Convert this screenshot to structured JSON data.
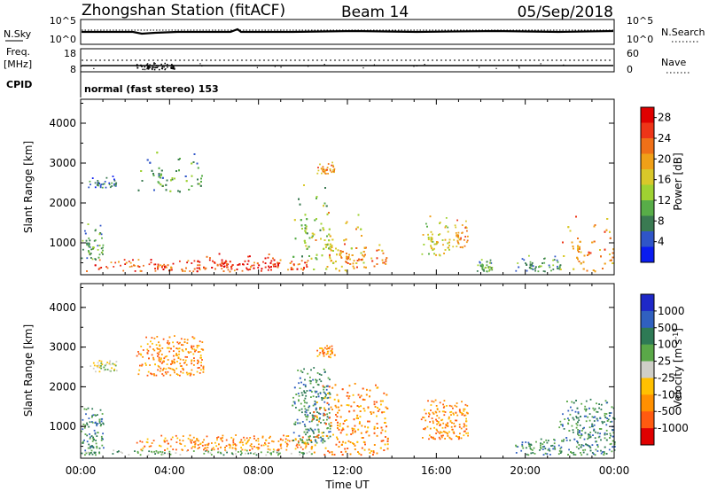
{
  "header": {
    "title": "Zhongshan Station (fitACF)",
    "beam": "Beam 14",
    "date": "05/Sep/2018"
  },
  "nsky_panel": {
    "left_label": "N.Sky",
    "left_ticks": [
      "10^5",
      "10^0"
    ],
    "right_label": "N.Search",
    "right_ticks": [
      "10^5",
      "10^0"
    ]
  },
  "freq_panel": {
    "left_label_1": "Freq.",
    "left_label_2": "[MHz]",
    "left_ticks": [
      "18",
      "8"
    ],
    "right_label": "Nave",
    "right_ticks": [
      "60",
      "0"
    ]
  },
  "cpid": {
    "label": "CPID",
    "mode_text": "normal (fast stereo) 153"
  },
  "time_axis": {
    "label": "Time UT",
    "ticks": [
      "00:00",
      "04:00",
      "08:00",
      "12:00",
      "16:00",
      "20:00",
      "00:00"
    ]
  },
  "chart_data": [
    {
      "type": "heatmap",
      "panel": "power",
      "xlabel": "Time UT",
      "ylabel": "Slant Range [km]",
      "x_ticks": [
        "00:00",
        "04:00",
        "08:00",
        "12:00",
        "16:00",
        "20:00",
        "00:00"
      ],
      "xlim_hours": [
        0,
        24
      ],
      "ylim": [
        200,
        4600
      ],
      "y_ticks": [
        "1000",
        "2000",
        "3000",
        "4000"
      ],
      "colorbar": {
        "label": "Power [dB]",
        "ticks": [
          "4",
          "8",
          "12",
          "16",
          "20",
          "24",
          "28"
        ],
        "range": [
          0,
          30
        ],
        "colors": [
          "#0a1cf0",
          "#2f55c8",
          "#3a7a52",
          "#58ad48",
          "#9fd232",
          "#d9c82a",
          "#f0a018",
          "#f07018",
          "#ee3518",
          "#e00000"
        ]
      },
      "scatter_regions": [
        {
          "t0": 0.0,
          "t1": 10.4,
          "r0": 300,
          "r1": 600,
          "level": 24
        },
        {
          "t0": 0.0,
          "t1": 1.0,
          "r0": 600,
          "r1": 1500,
          "level": 9
        },
        {
          "t0": 0.3,
          "t1": 1.6,
          "r0": 2400,
          "r1": 2700,
          "level": 6
        },
        {
          "t0": 2.5,
          "t1": 5.5,
          "r0": 2300,
          "r1": 3300,
          "level": 9
        },
        {
          "t0": 5.0,
          "t1": 9.0,
          "r0": 350,
          "r1": 750,
          "level": 26
        },
        {
          "t0": 9.5,
          "t1": 11.2,
          "r0": 600,
          "r1": 2500,
          "level": 12
        },
        {
          "t0": 10.4,
          "t1": 12.8,
          "r0": 300,
          "r1": 1800,
          "level": 17
        },
        {
          "t0": 11.0,
          "t1": 13.8,
          "r0": 400,
          "r1": 1000,
          "level": 21
        },
        {
          "t0": 10.6,
          "t1": 11.4,
          "r0": 2750,
          "r1": 3050,
          "level": 20
        },
        {
          "t0": 15.3,
          "t1": 16.6,
          "r0": 700,
          "r1": 1700,
          "level": 16
        },
        {
          "t0": 16.7,
          "t1": 17.4,
          "r0": 900,
          "r1": 1600,
          "level": 20
        },
        {
          "t0": 17.8,
          "t1": 18.5,
          "r0": 300,
          "r1": 600,
          "level": 10
        },
        {
          "t0": 19.5,
          "t1": 21.6,
          "r0": 300,
          "r1": 700,
          "level": 8
        },
        {
          "t0": 21.5,
          "t1": 24.0,
          "r0": 300,
          "r1": 1700,
          "level": 20
        }
      ]
    },
    {
      "type": "heatmap",
      "panel": "velocity",
      "xlabel": "Time UT",
      "ylabel": "Slant Range [km]",
      "x_ticks": [
        "00:00",
        "04:00",
        "08:00",
        "12:00",
        "16:00",
        "20:00",
        "00:00"
      ],
      "xlim_hours": [
        0,
        24
      ],
      "ylim": [
        200,
        4600
      ],
      "y_ticks": [
        "1000",
        "2000",
        "3000",
        "4000"
      ],
      "colorbar": {
        "label": "Velocity [m s^-1]",
        "ticks": [
          "1000",
          "500",
          "100",
          "25",
          "-25",
          "-100",
          "-500",
          "-1000"
        ],
        "colors": [
          "#1e28c8",
          "#3060c0",
          "#2e7a55",
          "#5aa848",
          "#cfcfc8",
          "#ffc000",
          "#ff9000",
          "#ff5a10",
          "#e00000"
        ]
      },
      "scatter_regions": [
        {
          "t0": 0.0,
          "t1": 1.0,
          "r0": 300,
          "r1": 1500,
          "level": 2
        },
        {
          "t0": 0.3,
          "t1": 1.6,
          "r0": 2400,
          "r1": 2700,
          "level": 4
        },
        {
          "t0": 0.0,
          "t1": 10.4,
          "r0": 300,
          "r1": 420,
          "level": 3
        },
        {
          "t0": 2.5,
          "t1": 10.4,
          "r0": 420,
          "r1": 800,
          "level": 6
        },
        {
          "t0": 2.5,
          "t1": 5.5,
          "r0": 2300,
          "r1": 3300,
          "level": 6
        },
        {
          "t0": 9.5,
          "t1": 11.2,
          "r0": 600,
          "r1": 2500,
          "level": 2
        },
        {
          "t0": 10.4,
          "t1": 13.8,
          "r0": 300,
          "r1": 2100,
          "level": 6
        },
        {
          "t0": 10.6,
          "t1": 11.4,
          "r0": 2750,
          "r1": 3050,
          "level": 6
        },
        {
          "t0": 15.3,
          "t1": 17.4,
          "r0": 700,
          "r1": 1700,
          "level": 6
        },
        {
          "t0": 19.5,
          "t1": 21.6,
          "r0": 300,
          "r1": 700,
          "level": 2
        },
        {
          "t0": 21.5,
          "t1": 24.0,
          "r0": 300,
          "r1": 1700,
          "level": 2
        }
      ]
    }
  ]
}
